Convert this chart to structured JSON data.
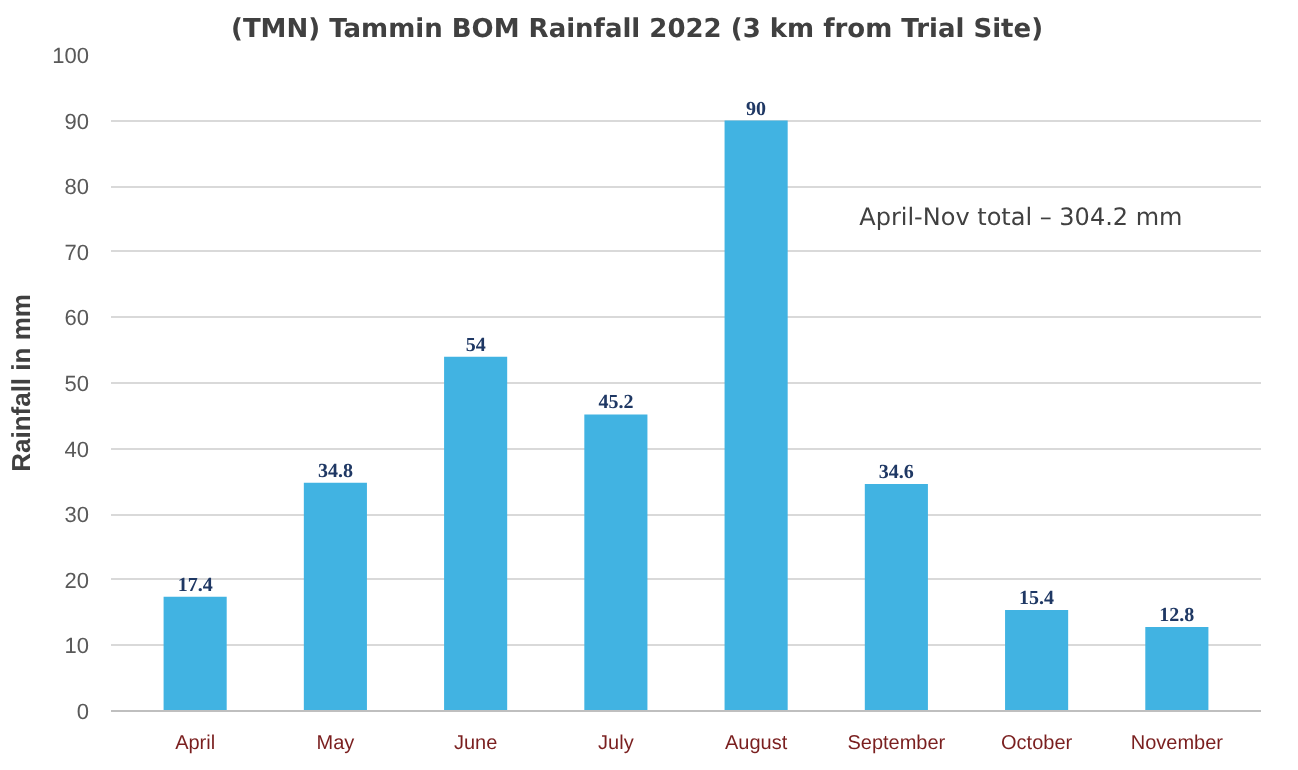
{
  "chart_data": {
    "type": "bar",
    "title": "(TMN) Tammin BOM Rainfall 2022 (3 km from Trial Site)",
    "ylabel": "Rainfall in mm",
    "categories": [
      "April",
      "May",
      "June",
      "July",
      "August",
      "September",
      "October",
      "November"
    ],
    "values": [
      17.4,
      34.8,
      54,
      45.2,
      90,
      34.6,
      15.4,
      12.8
    ],
    "color": "#41b3e2",
    "ylim": [
      0,
      100
    ],
    "yticks": [
      0,
      10,
      20,
      30,
      40,
      50,
      60,
      70,
      80,
      90,
      100
    ],
    "grid": "y",
    "data_labels": true,
    "annotations": [
      "April-Nov total – 304.2 mm"
    ]
  }
}
